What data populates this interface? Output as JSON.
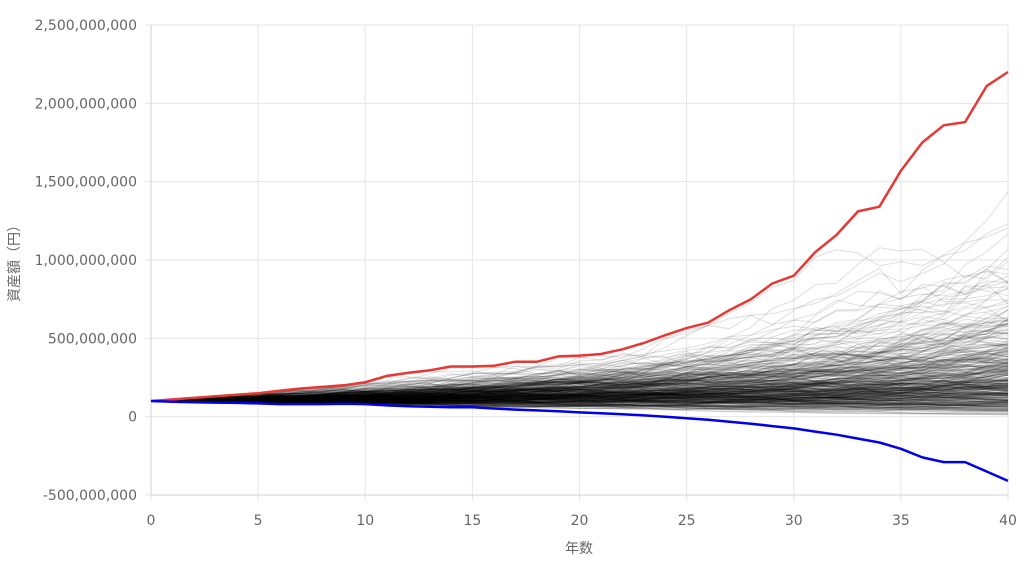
{
  "chart_data": {
    "type": "line",
    "xlabel": "年数",
    "ylabel": "資産額（円）",
    "xlim": [
      0,
      40
    ],
    "ylim": [
      -500000000,
      2500000000
    ],
    "x_ticks": [
      0,
      5,
      10,
      15,
      20,
      25,
      30,
      35,
      40
    ],
    "y_ticks": [
      -500000000,
      0,
      500000000,
      1000000000,
      1500000000,
      2000000000,
      2500000000
    ],
    "y_tick_labels": [
      "-500,000,000",
      "0",
      "500,000,000",
      "1,000,000,000",
      "1,500,000,000",
      "2,000,000,000",
      "2,500,000,000"
    ],
    "grid": true,
    "legend": "none",
    "simulation_paths": {
      "count": 400,
      "start_value": 100000000,
      "color": "#000000",
      "opacity": 0.13
    },
    "series": [
      {
        "role": "max",
        "color": "#e53935",
        "x": [
          0,
          1,
          2,
          3,
          4,
          5,
          6,
          7,
          8,
          9,
          10,
          11,
          12,
          13,
          14,
          15,
          16,
          17,
          18,
          19,
          20,
          21,
          22,
          23,
          24,
          25,
          26,
          27,
          28,
          29,
          30,
          31,
          32,
          33,
          34,
          35,
          36,
          37,
          38,
          39,
          40
        ],
        "values": [
          100000000,
          110000000,
          120000000,
          130000000,
          140000000,
          150000000,
          165000000,
          180000000,
          190000000,
          200000000,
          220000000,
          260000000,
          280000000,
          295000000,
          320000000,
          320000000,
          325000000,
          350000000,
          350000000,
          385000000,
          390000000,
          400000000,
          430000000,
          470000000,
          520000000,
          565000000,
          600000000,
          680000000,
          750000000,
          850000000,
          900000000,
          1050000000,
          1160000000,
          1310000000,
          1340000000,
          1570000000,
          1750000000,
          1860000000,
          1880000000,
          2110000000,
          2200000000
        ]
      },
      {
        "role": "min",
        "color": "#0000ee",
        "x": [
          0,
          1,
          2,
          3,
          4,
          5,
          6,
          7,
          8,
          9,
          10,
          11,
          12,
          13,
          14,
          15,
          16,
          17,
          18,
          19,
          20,
          21,
          22,
          23,
          24,
          25,
          26,
          27,
          28,
          29,
          30,
          31,
          32,
          33,
          34,
          35,
          36,
          37,
          38,
          39,
          40
        ],
        "values": [
          100000000,
          95000000,
          92000000,
          90000000,
          88000000,
          85000000,
          80000000,
          80000000,
          80000000,
          82000000,
          80000000,
          72000000,
          66000000,
          63000000,
          60000000,
          60000000,
          52000000,
          45000000,
          40000000,
          35000000,
          27000000,
          22000000,
          16000000,
          8000000,
          0,
          -10000000,
          -20000000,
          -32000000,
          -45000000,
          -60000000,
          -75000000,
          -95000000,
          -115000000,
          -140000000,
          -165000000,
          -205000000,
          -260000000,
          -290000000,
          -290000000,
          -350000000,
          -410000000
        ]
      }
    ]
  }
}
